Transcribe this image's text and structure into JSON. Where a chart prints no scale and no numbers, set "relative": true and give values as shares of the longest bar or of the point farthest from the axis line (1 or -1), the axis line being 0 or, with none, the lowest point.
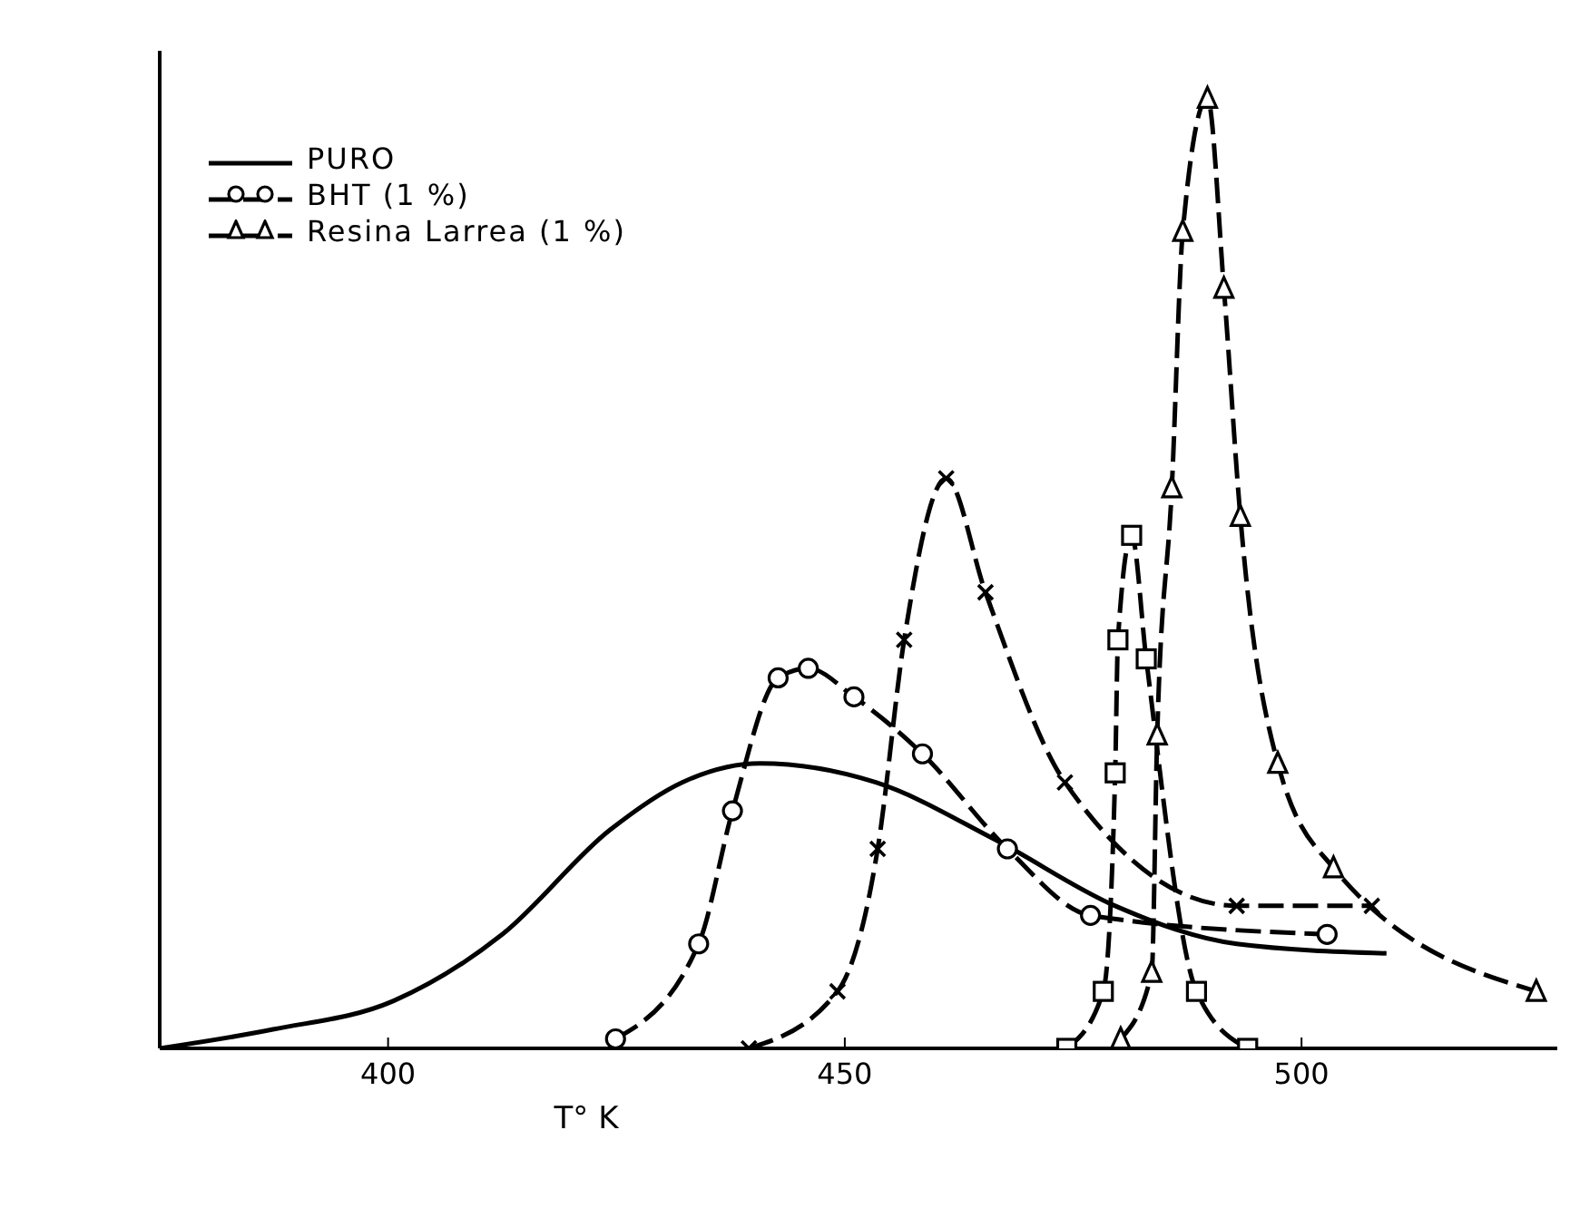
{
  "chart_data": {
    "type": "line",
    "xlabel": "T° K",
    "relative": true,
    "xlim": [
      375,
      528
    ],
    "xticks": [
      400,
      450,
      500
    ],
    "legend": "top left",
    "grid": false,
    "series": [
      {
        "name": "PURO",
        "color": "#000000",
        "marker": "none",
        "line_style": "solid",
        "x": [
          375,
          387.4,
          400.6,
          412.5,
          424.3,
          432.2,
          440.7,
          453.4,
          466.4,
          479.6,
          492.9,
          509.3
        ],
        "values": [
          0,
          0.02,
          0.05,
          0.12,
          0.23,
          0.28,
          0.3,
          0.28,
          0.22,
          0.15,
          0.11,
          0.1
        ]
      },
      {
        "name": "BHT (1 %)",
        "color": "#000000",
        "marker": "circle",
        "line_style": "dashed",
        "x": [
          424.9,
          434.0,
          437.7,
          442.7,
          446.0,
          451.0,
          458.5,
          467.8,
          476.9,
          502.8
        ],
        "values": [
          0.01,
          0.11,
          0.25,
          0.39,
          0.4,
          0.37,
          0.31,
          0.21,
          0.14,
          0.12
        ]
      },
      {
        "color": "#000000",
        "marker": "cross",
        "line_style": "dashed",
        "x": [
          439.5,
          449.2,
          453.6,
          456.5,
          461.1,
          465.4,
          474.1,
          492.9,
          507.7
        ],
        "values": [
          0,
          0.06,
          0.21,
          0.43,
          0.6,
          0.48,
          0.28,
          0.15,
          0.15
        ]
      },
      {
        "name": "Resina Larrea (1 %)",
        "color": "#000000",
        "marker": "triangle",
        "line_style": "dashed",
        "x": [
          480.2,
          483.6,
          484.2,
          485.8,
          487.0,
          489.7,
          491.5,
          493.3,
          497.4,
          503.5,
          525.7
        ],
        "values": [
          0.01,
          0.08,
          0.33,
          0.59,
          0.86,
          1.0,
          0.8,
          0.56,
          0.3,
          0.19,
          0.06
        ]
      },
      {
        "color": "#000000",
        "marker": "square",
        "line_style": "dashed",
        "x": [
          474.3,
          478.3,
          479.6,
          479.9,
          481.4,
          483.0,
          488.5,
          494.1
        ],
        "values": [
          0,
          0.06,
          0.29,
          0.43,
          0.54,
          0.41,
          0.06,
          0
        ]
      }
    ]
  }
}
